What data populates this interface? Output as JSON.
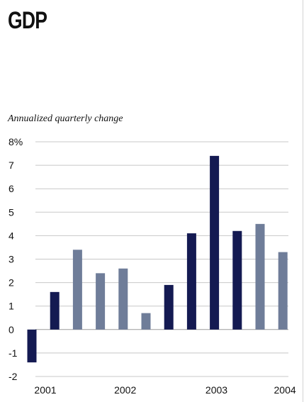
{
  "title": "GDP",
  "subtitle": "Annualized quarterly change",
  "chart_data": {
    "type": "bar",
    "title": "GDP",
    "subtitle": "Annualized quarterly change",
    "xlabel": "",
    "ylabel": "",
    "ylim": [
      -2,
      8
    ],
    "y_ticks": [
      "8%",
      "7",
      "6",
      "5",
      "4",
      "3",
      "2",
      "1",
      "0",
      "-1",
      "-2"
    ],
    "y_tick_values": [
      8,
      7,
      6,
      5,
      4,
      3,
      2,
      1,
      0,
      -1,
      -2
    ],
    "grid": true,
    "year_labels": [
      {
        "label": "2001",
        "bar_index": 0
      },
      {
        "label": "2002",
        "bar_index": 3.5
      },
      {
        "label": "2003",
        "bar_index": 7.5
      },
      {
        "label": "2004",
        "bar_index": 10.5
      }
    ],
    "colors": {
      "dark": "#141a52",
      "light": "#6f7d99"
    },
    "values": [
      -1.4,
      1.6,
      3.4,
      2.4,
      2.6,
      0.7,
      1.9,
      4.1,
      7.4,
      4.2,
      4.5,
      3.3
    ],
    "bar_colors": [
      "dark",
      "dark",
      "light",
      "light",
      "light",
      "light",
      "dark",
      "dark",
      "dark",
      "dark",
      "light",
      "light"
    ]
  }
}
